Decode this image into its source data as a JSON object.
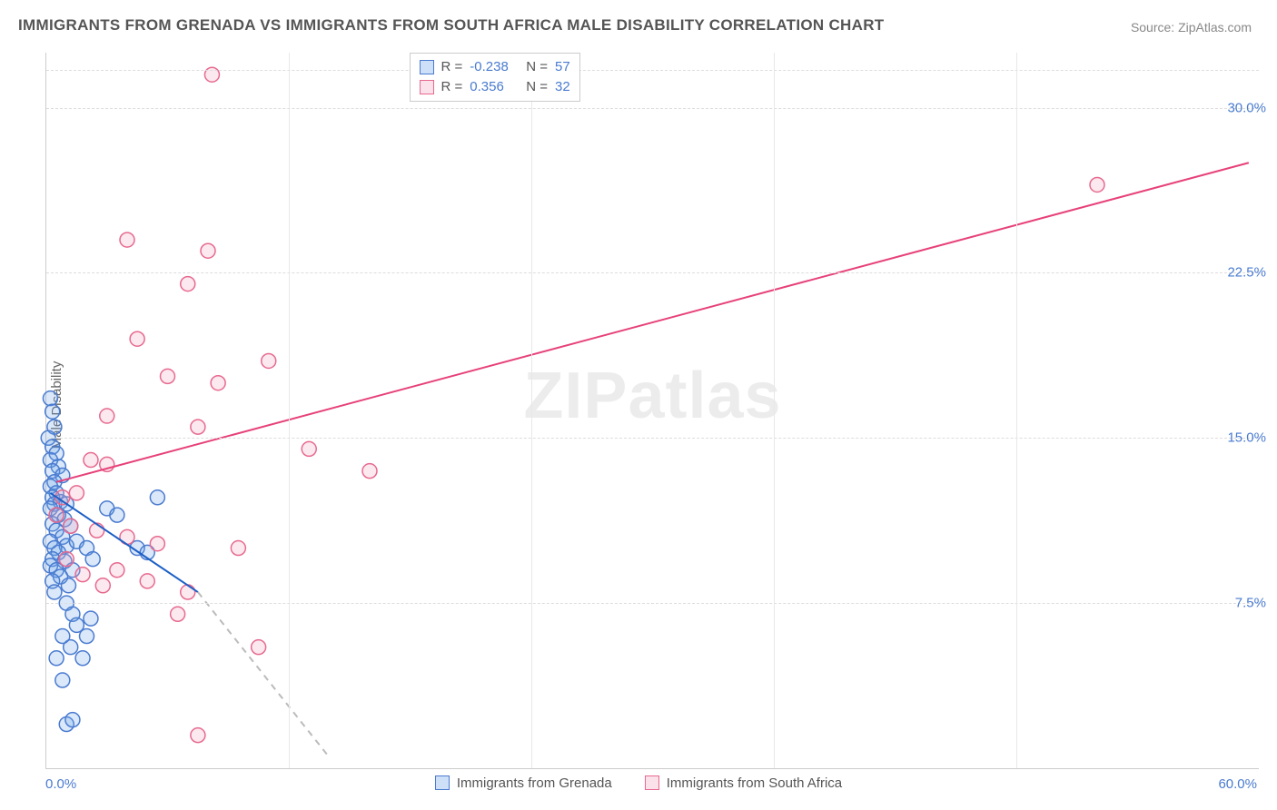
{
  "title": "IMMIGRANTS FROM GRENADA VS IMMIGRANTS FROM SOUTH AFRICA MALE DISABILITY CORRELATION CHART",
  "source": "Source: ZipAtlas.com",
  "ylabel": "Male Disability",
  "watermark_a": "ZIP",
  "watermark_b": "atlas",
  "chart": {
    "type": "scatter",
    "background_color": "#ffffff",
    "grid_color": "#dddddd",
    "axis_color": "#cccccc",
    "tick_color": "#4a7bd0",
    "xlim": [
      0,
      60
    ],
    "ylim": [
      0,
      32.5
    ],
    "xticks": [
      {
        "v": 0,
        "label": "0.0%"
      },
      {
        "v": 60,
        "label": "60.0%"
      }
    ],
    "yticks": [
      {
        "v": 7.5,
        "label": "7.5%"
      },
      {
        "v": 15.0,
        "label": "15.0%"
      },
      {
        "v": 22.5,
        "label": "22.5%"
      },
      {
        "v": 30.0,
        "label": "30.0%"
      }
    ],
    "x_gridlines": [
      12,
      24,
      36,
      48
    ],
    "marker_radius": 8,
    "marker_stroke_width": 1.5,
    "marker_fill_opacity": 0.25,
    "line_width": 2
  },
  "series": {
    "grenada": {
      "label": "Immigrants from Grenada",
      "color": "#6aa3e8",
      "stroke": "#4a7bd0",
      "line_color": "#1c5fc6",
      "R": "-0.238",
      "N": "57",
      "points": [
        [
          0.2,
          16.8
        ],
        [
          0.3,
          16.2
        ],
        [
          0.4,
          15.5
        ],
        [
          0.1,
          15.0
        ],
        [
          0.3,
          14.6
        ],
        [
          0.5,
          14.3
        ],
        [
          0.2,
          14.0
        ],
        [
          0.6,
          13.7
        ],
        [
          0.3,
          13.5
        ],
        [
          0.8,
          13.3
        ],
        [
          0.4,
          13.0
        ],
        [
          0.2,
          12.8
        ],
        [
          0.5,
          12.5
        ],
        [
          0.3,
          12.3
        ],
        [
          0.7,
          12.1
        ],
        [
          0.4,
          12.0
        ],
        [
          1.0,
          12.0
        ],
        [
          0.2,
          11.8
        ],
        [
          0.6,
          11.5
        ],
        [
          0.9,
          11.3
        ],
        [
          0.3,
          11.1
        ],
        [
          1.2,
          11.0
        ],
        [
          0.5,
          10.8
        ],
        [
          0.8,
          10.5
        ],
        [
          0.2,
          10.3
        ],
        [
          1.0,
          10.1
        ],
        [
          0.4,
          10.0
        ],
        [
          0.6,
          9.8
        ],
        [
          0.3,
          9.5
        ],
        [
          0.9,
          9.4
        ],
        [
          0.2,
          9.2
        ],
        [
          1.3,
          9.0
        ],
        [
          0.5,
          9.0
        ],
        [
          0.7,
          8.7
        ],
        [
          0.3,
          8.5
        ],
        [
          1.1,
          8.3
        ],
        [
          0.4,
          8.0
        ],
        [
          1.5,
          10.3
        ],
        [
          2.0,
          10.0
        ],
        [
          2.3,
          9.5
        ],
        [
          3.0,
          11.8
        ],
        [
          3.5,
          11.5
        ],
        [
          4.5,
          10.0
        ],
        [
          5.0,
          9.8
        ],
        [
          5.5,
          12.3
        ],
        [
          1.0,
          7.5
        ],
        [
          1.3,
          7.0
        ],
        [
          1.5,
          6.5
        ],
        [
          2.0,
          6.0
        ],
        [
          0.8,
          6.0
        ],
        [
          1.2,
          5.5
        ],
        [
          0.5,
          5.0
        ],
        [
          1.8,
          5.0
        ],
        [
          2.2,
          6.8
        ],
        [
          1.0,
          2.0
        ],
        [
          1.3,
          2.2
        ],
        [
          0.8,
          4.0
        ]
      ],
      "trend": {
        "x1": 0.2,
        "y1": 12.5,
        "x2": 7.5,
        "y2": 8.0,
        "dash": {
          "on": true,
          "x1": 7.5,
          "y1": 8.0,
          "x2": 14.0,
          "y2": 0.5
        }
      }
    },
    "south_africa": {
      "label": "Immigrants from South Africa",
      "color": "#f3a9c0",
      "stroke": "#e7698f",
      "line_color": "#e7417a",
      "R": "0.356",
      "N": "32",
      "points": [
        [
          8.2,
          31.5
        ],
        [
          4.0,
          24.0
        ],
        [
          8.0,
          23.5
        ],
        [
          7.0,
          22.0
        ],
        [
          4.5,
          19.5
        ],
        [
          6.0,
          17.8
        ],
        [
          8.5,
          17.5
        ],
        [
          11.0,
          18.5
        ],
        [
          13.0,
          14.5
        ],
        [
          16.0,
          13.5
        ],
        [
          7.5,
          15.5
        ],
        [
          3.0,
          16.0
        ],
        [
          2.2,
          14.0
        ],
        [
          1.5,
          12.5
        ],
        [
          0.8,
          12.3
        ],
        [
          0.5,
          11.5
        ],
        [
          1.2,
          11.0
        ],
        [
          2.5,
          10.8
        ],
        [
          4.0,
          10.5
        ],
        [
          5.5,
          10.2
        ],
        [
          3.5,
          9.0
        ],
        [
          5.0,
          8.5
        ],
        [
          9.5,
          10.0
        ],
        [
          7.0,
          8.0
        ],
        [
          6.5,
          7.0
        ],
        [
          10.5,
          5.5
        ],
        [
          7.5,
          1.5
        ],
        [
          1.0,
          9.5
        ],
        [
          1.8,
          8.8
        ],
        [
          2.8,
          8.3
        ],
        [
          3.0,
          13.8
        ],
        [
          52.0,
          26.5
        ]
      ],
      "trend": {
        "x1": 0.5,
        "y1": 13.0,
        "x2": 59.5,
        "y2": 27.5,
        "dash": {
          "on": false
        }
      }
    }
  },
  "legend_top": {
    "rows": [
      {
        "swatch": "grenada",
        "r_label": "R =",
        "r_val": "-0.238",
        "n_label": "N =",
        "n_val": "57"
      },
      {
        "swatch": "south_africa",
        "r_label": "R =",
        "r_val": "0.356",
        "n_label": "N =",
        "n_val": "32"
      }
    ]
  },
  "legend_bottom": {
    "items": [
      {
        "swatch": "grenada",
        "label": "Immigrants from Grenada"
      },
      {
        "swatch": "south_africa",
        "label": "Immigrants from South Africa"
      }
    ]
  }
}
